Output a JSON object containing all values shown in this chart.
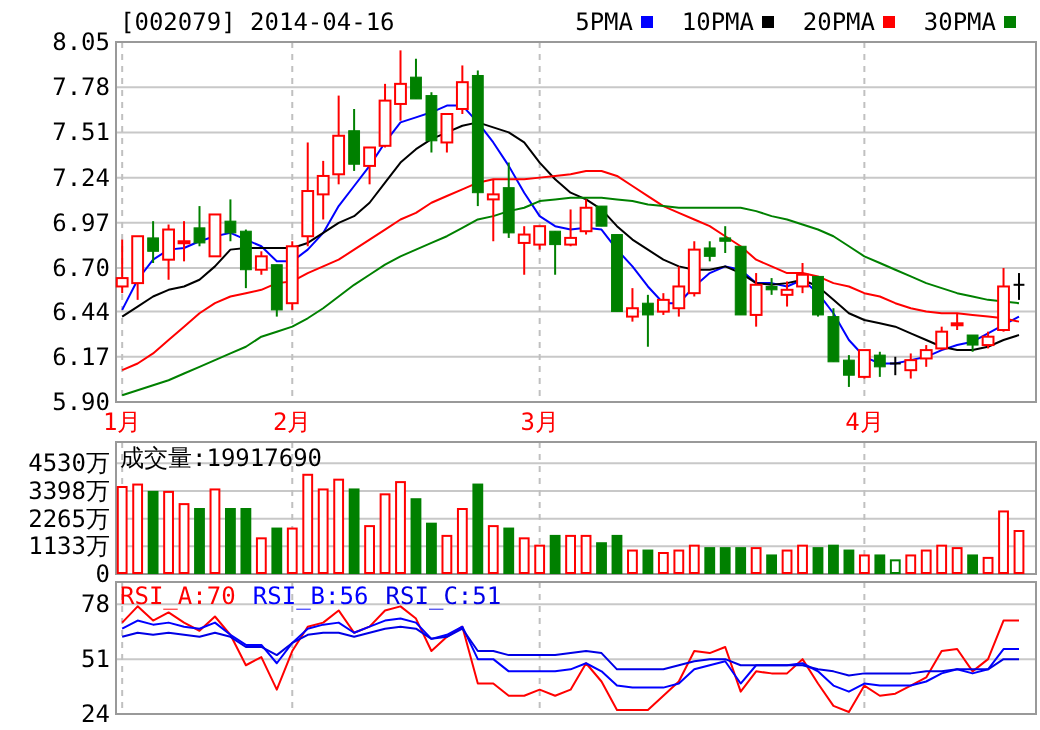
{
  "chart_data": [
    {
      "type": "candlestick",
      "title": "[002079] 2014-04-16",
      "categories": [
        "1月",
        null,
        null,
        null,
        null,
        null,
        null,
        null,
        null,
        null,
        null,
        "2月",
        null,
        null,
        null,
        null,
        null,
        null,
        null,
        null,
        null,
        null,
        null,
        null,
        null,
        null,
        null,
        "3月",
        null,
        null,
        null,
        null,
        null,
        null,
        null,
        null,
        null,
        null,
        null,
        null,
        null,
        null,
        null,
        null,
        null,
        null,
        null,
        null,
        "4月",
        null,
        null,
        null,
        null,
        null,
        null,
        null,
        null,
        null,
        null
      ],
      "ohlc": [
        [
          6.59,
          6.87,
          6.55,
          6.64
        ],
        [
          6.61,
          6.89,
          6.51,
          6.89
        ],
        [
          6.88,
          6.98,
          6.73,
          6.8
        ],
        [
          6.75,
          6.96,
          6.63,
          6.93
        ],
        [
          6.85,
          6.98,
          6.74,
          6.86
        ],
        [
          6.94,
          7.07,
          6.83,
          6.85
        ],
        [
          6.77,
          7.02,
          6.77,
          7.02
        ],
        [
          6.98,
          7.11,
          6.86,
          6.91
        ],
        [
          6.92,
          6.93,
          6.58,
          6.69
        ],
        [
          6.69,
          6.8,
          6.66,
          6.77
        ],
        [
          6.72,
          6.72,
          6.41,
          6.45
        ],
        [
          6.49,
          6.86,
          6.45,
          6.83
        ],
        [
          6.89,
          7.45,
          6.83,
          7.16
        ],
        [
          7.14,
          7.34,
          6.99,
          7.25
        ],
        [
          7.26,
          7.73,
          7.2,
          7.49
        ],
        [
          7.52,
          7.65,
          7.28,
          7.32
        ],
        [
          7.31,
          7.42,
          7.2,
          7.42
        ],
        [
          7.43,
          7.8,
          7.42,
          7.7
        ],
        [
          7.68,
          8.0,
          7.58,
          7.8
        ],
        [
          7.84,
          7.95,
          7.71,
          7.71
        ],
        [
          7.73,
          7.75,
          7.39,
          7.46
        ],
        [
          7.45,
          7.62,
          7.39,
          7.62
        ],
        [
          7.65,
          7.91,
          7.62,
          7.81
        ],
        [
          7.85,
          7.88,
          7.07,
          7.15
        ],
        [
          7.11,
          7.23,
          6.86,
          7.14
        ],
        [
          7.18,
          7.33,
          6.88,
          6.91
        ],
        [
          6.85,
          6.95,
          6.66,
          6.9
        ],
        [
          6.84,
          6.95,
          6.81,
          6.95
        ],
        [
          6.92,
          6.92,
          6.66,
          6.84
        ],
        [
          6.84,
          7.05,
          6.83,
          6.88
        ],
        [
          6.92,
          7.11,
          6.9,
          7.06
        ],
        [
          7.07,
          7.07,
          6.95,
          6.95
        ],
        [
          6.9,
          6.9,
          6.44,
          6.44
        ],
        [
          6.41,
          6.58,
          6.38,
          6.46
        ],
        [
          6.49,
          6.54,
          6.23,
          6.42
        ],
        [
          6.44,
          6.55,
          6.42,
          6.51
        ],
        [
          6.46,
          6.71,
          6.41,
          6.59
        ],
        [
          6.55,
          6.86,
          6.53,
          6.81
        ],
        [
          6.82,
          6.86,
          6.74,
          6.77
        ],
        [
          6.88,
          6.95,
          6.79,
          6.86
        ],
        [
          6.83,
          6.83,
          6.42,
          6.42
        ],
        [
          6.42,
          6.67,
          6.35,
          6.6
        ],
        [
          6.59,
          6.64,
          6.54,
          6.57
        ],
        [
          6.54,
          6.62,
          6.47,
          6.57
        ],
        [
          6.59,
          6.73,
          6.55,
          6.66
        ],
        [
          6.65,
          6.65,
          6.41,
          6.42
        ],
        [
          6.41,
          6.46,
          6.14,
          6.14
        ],
        [
          6.15,
          6.18,
          5.99,
          6.06
        ],
        [
          6.05,
          6.21,
          6.04,
          6.21
        ],
        [
          6.18,
          6.2,
          6.05,
          6.11
        ],
        [
          6.13,
          6.17,
          6.06,
          6.13
        ],
        [
          6.09,
          6.19,
          6.04,
          6.15
        ],
        [
          6.16,
          6.24,
          6.11,
          6.21
        ],
        [
          6.22,
          6.35,
          6.21,
          6.32
        ],
        [
          6.36,
          6.43,
          6.33,
          6.37
        ],
        [
          6.3,
          6.3,
          6.2,
          6.24
        ],
        [
          6.24,
          6.32,
          6.22,
          6.29
        ],
        [
          6.33,
          6.7,
          6.32,
          6.59
        ],
        [
          6.6,
          6.67,
          6.51,
          6.6
        ]
      ],
      "colors": [
        "#ff0000",
        "#ff0000",
        "#008000",
        "#ff0000",
        "#ff0000",
        "#008000",
        "#ff0000",
        "#008000",
        "#008000",
        "#ff0000",
        "#008000",
        "#ff0000",
        "#ff0000",
        "#ff0000",
        "#ff0000",
        "#008000",
        "#ff0000",
        "#ff0000",
        "#ff0000",
        "#008000",
        "#008000",
        "#ff0000",
        "#ff0000",
        "#008000",
        "#ff0000",
        "#008000",
        "#ff0000",
        "#ff0000",
        "#008000",
        "#ff0000",
        "#ff0000",
        "#008000",
        "#008000",
        "#ff0000",
        "#008000",
        "#ff0000",
        "#ff0000",
        "#ff0000",
        "#008000",
        "#008000",
        "#008000",
        "#ff0000",
        "#008000",
        "#ff0000",
        "#ff0000",
        "#008000",
        "#008000",
        "#008000",
        "#ff0000",
        "#008000",
        "#000000",
        "#ff0000",
        "#ff0000",
        "#ff0000",
        "#ff0000",
        "#008000",
        "#ff0000",
        "#ff0000",
        "#000000"
      ],
      "series": [
        {
          "name": "5PMA",
          "type": "line",
          "color": "#0000ff",
          "values": [
            6.45,
            6.63,
            6.75,
            6.81,
            6.82,
            6.86,
            6.89,
            6.91,
            6.87,
            6.83,
            6.74,
            6.74,
            6.81,
            6.91,
            7.07,
            7.19,
            7.31,
            7.45,
            7.57,
            7.6,
            7.63,
            7.67,
            7.67,
            7.57,
            7.45,
            7.31,
            7.15,
            7.01,
            6.95,
            6.93,
            6.94,
            6.93,
            6.81,
            6.71,
            6.59,
            6.49,
            6.49,
            6.59,
            6.67,
            6.71,
            6.69,
            6.61,
            6.61,
            6.59,
            6.63,
            6.55,
            6.43,
            6.27,
            6.17,
            6.13,
            6.13,
            6.15,
            6.17,
            6.21,
            6.24,
            6.26,
            6.31,
            6.36,
            6.41
          ]
        },
        {
          "name": "10PMA",
          "type": "line",
          "color": "#000000",
          "values": [
            6.41,
            6.47,
            6.53,
            6.57,
            6.59,
            6.63,
            6.71,
            6.81,
            6.82,
            6.82,
            6.82,
            6.82,
            6.85,
            6.91,
            6.97,
            7.01,
            7.09,
            7.21,
            7.33,
            7.41,
            7.47,
            7.51,
            7.55,
            7.57,
            7.54,
            7.51,
            7.45,
            7.33,
            7.23,
            7.15,
            7.11,
            7.05,
            6.95,
            6.87,
            6.81,
            6.75,
            6.71,
            6.69,
            6.69,
            6.71,
            6.67,
            6.61,
            6.6,
            6.61,
            6.63,
            6.59,
            6.51,
            6.43,
            6.39,
            6.37,
            6.35,
            6.31,
            6.27,
            6.23,
            6.21,
            6.21,
            6.23,
            6.27,
            6.3
          ]
        },
        {
          "name": "20PMA",
          "type": "line",
          "color": "#ff0000",
          "values": [
            6.09,
            6.13,
            6.19,
            6.27,
            6.35,
            6.43,
            6.49,
            6.53,
            6.55,
            6.57,
            6.61,
            6.62,
            6.67,
            6.71,
            6.75,
            6.81,
            6.87,
            6.93,
            6.99,
            7.03,
            7.09,
            7.13,
            7.17,
            7.21,
            7.23,
            7.23,
            7.23,
            7.24,
            7.25,
            7.26,
            7.28,
            7.28,
            7.25,
            7.19,
            7.13,
            7.07,
            7.03,
            6.99,
            6.95,
            6.89,
            6.83,
            6.75,
            6.71,
            6.67,
            6.67,
            6.65,
            6.61,
            6.59,
            6.55,
            6.53,
            6.49,
            6.46,
            6.44,
            6.43,
            6.43,
            6.42,
            6.41,
            6.4,
            6.38
          ]
        },
        {
          "name": "30PMA",
          "type": "line",
          "color": "#008000",
          "values": [
            5.94,
            5.97,
            6.0,
            6.03,
            6.07,
            6.11,
            6.15,
            6.19,
            6.23,
            6.29,
            6.32,
            6.35,
            6.4,
            6.46,
            6.53,
            6.6,
            6.66,
            6.72,
            6.77,
            6.81,
            6.85,
            6.89,
            6.94,
            6.99,
            7.01,
            7.04,
            7.06,
            7.1,
            7.11,
            7.12,
            7.12,
            7.12,
            7.11,
            7.1,
            7.08,
            7.07,
            7.06,
            7.06,
            7.06,
            7.06,
            7.06,
            7.04,
            7.01,
            6.99,
            6.96,
            6.93,
            6.89,
            6.83,
            6.77,
            6.73,
            6.69,
            6.65,
            6.61,
            6.58,
            6.55,
            6.53,
            6.51,
            6.5,
            6.49
          ]
        }
      ],
      "ylim": [
        5.9,
        8.05
      ],
      "yticks": [
        {
          "value": 5.9,
          "label": "5.90"
        },
        {
          "value": 6.17,
          "label": "6.17"
        },
        {
          "value": 6.44,
          "label": "6.44"
        },
        {
          "value": 6.7,
          "label": "6.70"
        },
        {
          "value": 6.97,
          "label": "6.97"
        },
        {
          "value": 7.24,
          "label": "7.24"
        },
        {
          "value": 7.51,
          "label": "7.51"
        },
        {
          "value": 7.78,
          "label": "7.78"
        },
        {
          "value": 8.05,
          "label": "8.05"
        }
      ],
      "grid": true,
      "legend": "top right"
    },
    {
      "type": "bar",
      "title": "成交量:19917690",
      "values": [
        3600,
        3700,
        3400,
        3400,
        2900,
        2700,
        3500,
        2700,
        2700,
        1500,
        1900,
        1900,
        4100,
        3500,
        3900,
        3500,
        2000,
        3300,
        3800,
        3100,
        2100,
        1600,
        2700,
        3700,
        2000,
        1900,
        1500,
        1200,
        1600,
        1600,
        1600,
        1300,
        1600,
        1000,
        1000,
        900,
        1000,
        1200,
        1100,
        1100,
        1100,
        1100,
        800,
        1000,
        1200,
        1100,
        1200,
        1000,
        800,
        800,
        600,
        800,
        1000,
        1200,
        1100,
        800,
        700,
        2600,
        1800
      ],
      "colors": [
        "#ff0000",
        "#ff0000",
        "#008000",
        "#ff0000",
        "#ff0000",
        "#008000",
        "#ff0000",
        "#008000",
        "#008000",
        "#ff0000",
        "#008000",
        "#ff0000",
        "#ff0000",
        "#ff0000",
        "#ff0000",
        "#008000",
        "#ff0000",
        "#ff0000",
        "#ff0000",
        "#008000",
        "#008000",
        "#ff0000",
        "#ff0000",
        "#008000",
        "#ff0000",
        "#008000",
        "#ff0000",
        "#ff0000",
        "#008000",
        "#ff0000",
        "#ff0000",
        "#008000",
        "#008000",
        "#ff0000",
        "#008000",
        "#ff0000",
        "#ff0000",
        "#ff0000",
        "#008000",
        "#008000",
        "#008000",
        "#ff0000",
        "#008000",
        "#ff0000",
        "#ff0000",
        "#008000",
        "#008000",
        "#008000",
        "#ff0000",
        "#008000",
        "#008000",
        "#ff0000",
        "#ff0000",
        "#ff0000",
        "#ff0000",
        "#008000",
        "#ff0000",
        "#ff0000",
        "#ff0000"
      ],
      "ylim": [
        0,
        5400
      ],
      "yticks": [
        0,
        {
          "value": 1133,
          "label": "1133万"
        },
        {
          "value": 2265,
          "label": "2265万"
        },
        {
          "value": 3398,
          "label": "3398万"
        },
        {
          "value": 4530,
          "label": "4530万"
        }
      ],
      "grid": true,
      "tick_labels": "y"
    },
    {
      "type": "line",
      "series": [
        {
          "name": "RSI_A:70",
          "color": "#ff0000",
          "values": [
            69,
            77,
            70,
            74,
            69,
            65,
            72,
            63,
            48,
            52,
            36,
            55,
            67,
            69,
            75,
            64,
            67,
            75,
            77,
            71,
            55,
            62,
            67,
            39,
            39,
            33,
            33,
            36,
            33,
            36,
            49,
            40,
            26,
            26,
            26,
            33,
            40,
            55,
            54,
            57,
            35,
            45,
            44,
            44,
            51,
            39,
            28,
            25,
            38,
            33,
            34,
            38,
            42,
            55,
            56,
            45,
            51,
            70,
            70
          ]
        },
        {
          "name": "RSI_B:56",
          "color": "#0000ff",
          "values": [
            66,
            70,
            68,
            69,
            67,
            66,
            69,
            63,
            58,
            58,
            49,
            59,
            66,
            68,
            69,
            64,
            67,
            70,
            71,
            69,
            61,
            63,
            67,
            51,
            51,
            45,
            45,
            45,
            45,
            46,
            49,
            45,
            38,
            37,
            37,
            37,
            39,
            46,
            48,
            50,
            39,
            48,
            48,
            48,
            49,
            45,
            38,
            35,
            39,
            38,
            38,
            38,
            40,
            44,
            46,
            44,
            46,
            56,
            56
          ]
        },
        {
          "name": "RSI_C:51",
          "color": "#0000e6",
          "values": [
            62,
            64,
            63,
            64,
            63,
            62,
            64,
            62,
            57,
            57,
            53,
            59,
            63,
            64,
            64,
            62,
            64,
            66,
            67,
            66,
            61,
            62,
            66,
            55,
            55,
            53,
            53,
            53,
            53,
            54,
            55,
            54,
            46,
            46,
            46,
            46,
            48,
            50,
            51,
            51,
            48,
            48,
            48,
            48,
            48,
            46,
            45,
            43,
            44,
            44,
            44,
            44,
            45,
            45,
            46,
            46,
            46,
            51,
            51
          ]
        }
      ],
      "ylim": [
        24,
        89
      ],
      "yticks": [
        24,
        51,
        78
      ],
      "grid": true,
      "legend": "top left",
      "tick_labels": "y"
    }
  ]
}
